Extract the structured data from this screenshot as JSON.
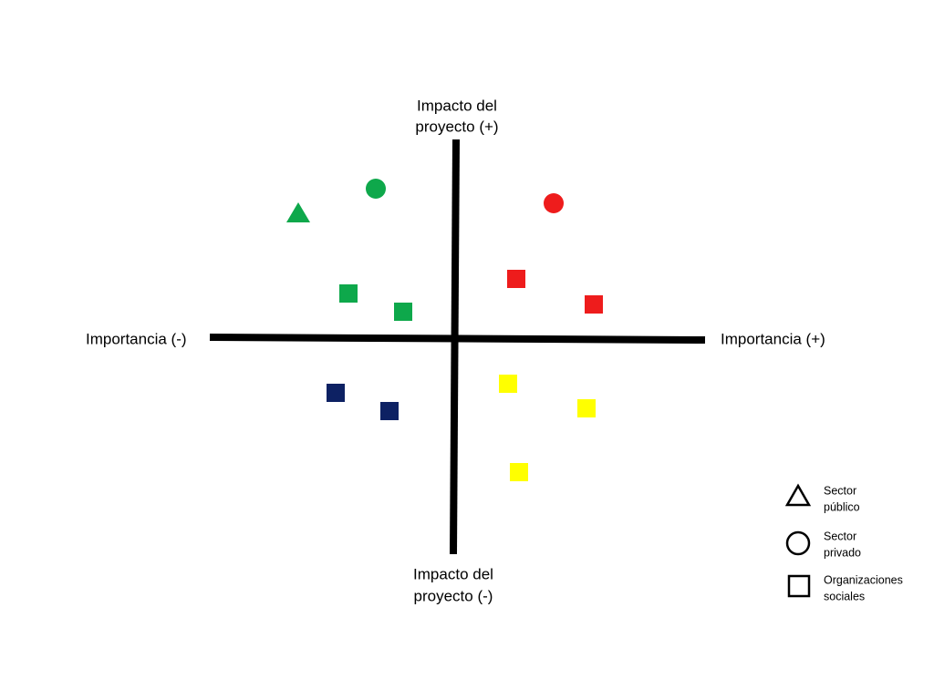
{
  "axes": {
    "top": [
      "Impacto del",
      "proyecto (+)"
    ],
    "bottom": [
      "Impacto del",
      "proyecto (-)"
    ],
    "left": "Importancia (-)",
    "right": "Importancia (+)"
  },
  "legend": [
    {
      "label": [
        "Sector",
        "público"
      ]
    },
    {
      "label": [
        "Sector",
        "privado"
      ]
    },
    {
      "label": [
        "Organizaciones",
        "sociales"
      ]
    }
  ]
}
